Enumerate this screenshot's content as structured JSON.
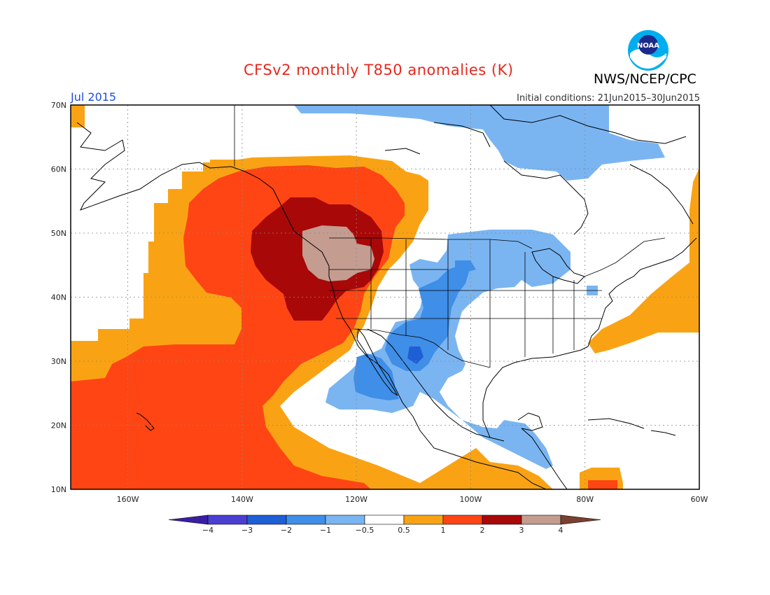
{
  "title": "CFSv2 monthly T850 anomalies (K)",
  "organization": "NWS/NCEP/CPC",
  "logo_text": "NOAA",
  "valid_month": "Jul 2015",
  "initial_conditions": "Initial conditions: 21Jun2015–30Jun2015",
  "map": {
    "lat_labels": [
      "70N",
      "60N",
      "50N",
      "40N",
      "30N",
      "20N",
      "10N"
    ],
    "lon_labels": [
      "160W",
      "140W",
      "120W",
      "100W",
      "80W",
      "60W"
    ],
    "extent": {
      "lon_min": -170,
      "lon_max": -60,
      "lat_min": 10,
      "lat_max": 70
    }
  },
  "colorbar": {
    "tick_labels": [
      "−4",
      "−3",
      "−2",
      "−1",
      "−0.5",
      "0.5",
      "1",
      "2",
      "3",
      "4"
    ],
    "colors": [
      "#3a1fa3",
      "#4a3fd0",
      "#1e5fd6",
      "#3f8ee8",
      "#7ab5f2",
      "#ffffff",
      "#f9a314",
      "#ff4514",
      "#a80808",
      "#c49c90",
      "#7a4030"
    ]
  }
}
